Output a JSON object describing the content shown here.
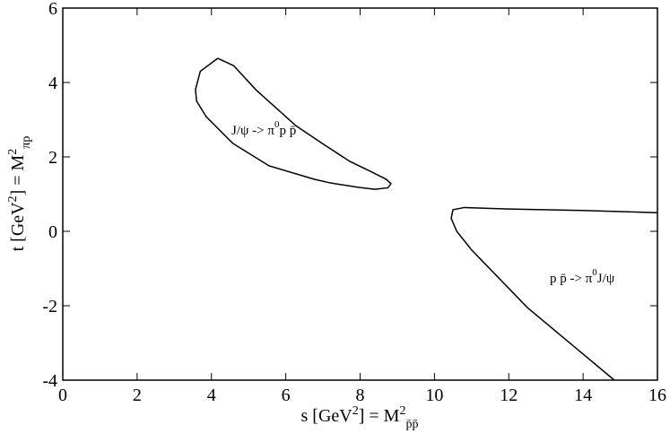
{
  "chart_data": {
    "type": "line",
    "xlim": [
      0,
      16
    ],
    "xticks": [
      0,
      2,
      4,
      6,
      8,
      10,
      12,
      14,
      16
    ],
    "ylim": [
      -4,
      6
    ],
    "yticks": [
      -4,
      -2,
      0,
      2,
      4,
      6
    ],
    "xlabel": [
      {
        "text": "s [GeV"
      },
      {
        "text": "2",
        "shift": "sup"
      },
      {
        "text": "] = M"
      },
      {
        "text": "2",
        "shift": "sup"
      },
      {
        "text": "p̄p̄",
        "shift": "sub"
      }
    ],
    "ylabel": [
      {
        "text": "t [GeV"
      },
      {
        "text": "2",
        "shift": "sup"
      },
      {
        "text": "] = M"
      },
      {
        "text": "2",
        "shift": "sup"
      },
      {
        "text": "πp",
        "shift": "sub"
      }
    ],
    "annotations": [
      [
        {
          "text": "J/ψ -> π"
        },
        {
          "text": "0",
          "shift": "sup"
        },
        {
          "text": "p p̄"
        }
      ],
      [
        {
          "text": "p p̄ -> π"
        },
        {
          "text": "0",
          "shift": "sup"
        },
        {
          "text": "J/ψ"
        }
      ]
    ],
    "series": [
      {
        "color": "#000000",
        "x": [
          4.17,
          4.6,
          5.2,
          6.27,
          7.0,
          7.72,
          8.3,
          8.7,
          8.83,
          8.75,
          8.4,
          7.96,
          7.2,
          6.76,
          5.55,
          4.58,
          3.86,
          3.6,
          3.57,
          3.7,
          4.17
        ],
        "values": [
          4.65,
          4.45,
          3.8,
          2.84,
          2.35,
          1.88,
          1.6,
          1.4,
          1.28,
          1.17,
          1.13,
          1.18,
          1.3,
          1.4,
          1.76,
          2.36,
          3.08,
          3.5,
          3.81,
          4.3,
          4.65
        ]
      },
      {
        "color": "#000000",
        "x": [
          16,
          14,
          12,
          10.8,
          10.5,
          10.45,
          10.6,
          11,
          12.5,
          14.84
        ],
        "values": [
          0.5,
          0.56,
          0.6,
          0.64,
          0.58,
          0.35,
          0.0,
          -0.5,
          -2.05,
          -4
        ]
      }
    ]
  }
}
